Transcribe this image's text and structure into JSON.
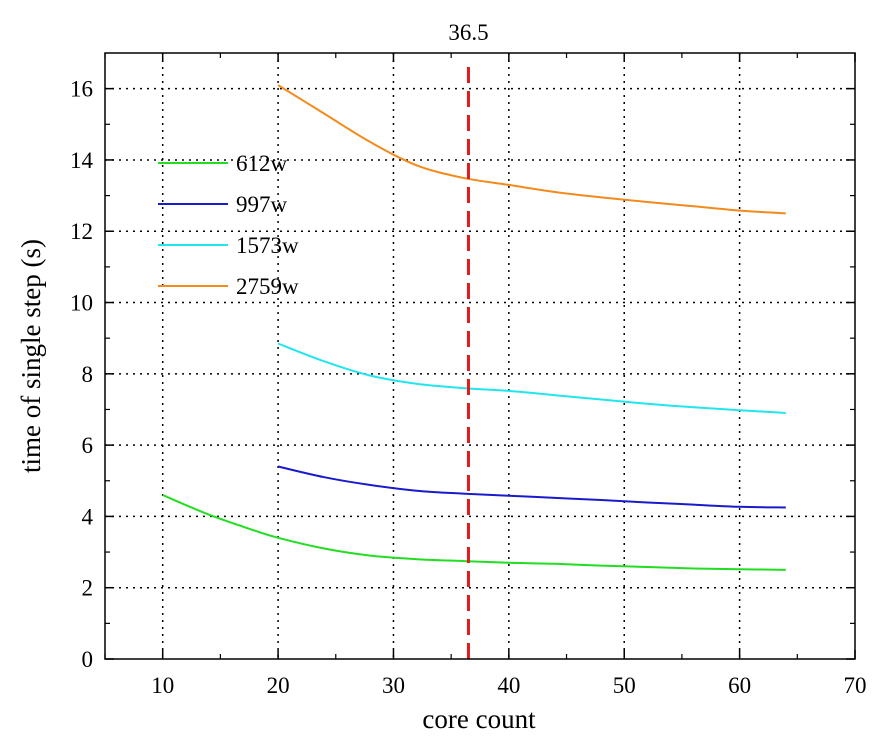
{
  "chart_data": {
    "type": "line",
    "xlabel": "core count",
    "ylabel": "time of single step (s)",
    "xlim": [
      5,
      70
    ],
    "ylim": [
      0,
      17
    ],
    "xticks": [
      10,
      20,
      30,
      40,
      50,
      60,
      70
    ],
    "yticks": [
      0,
      2,
      4,
      6,
      8,
      10,
      12,
      14,
      16
    ],
    "grid": true,
    "legend_position": "upper-left",
    "reference_line": {
      "x": 36.5,
      "label": "36.5",
      "color": "#e01b1b",
      "style": "dashed"
    },
    "series": [
      {
        "name": "612w",
        "color": "#22dd22",
        "x": [
          10,
          14,
          18,
          20,
          24,
          28,
          32,
          36,
          40,
          44,
          48,
          52,
          56,
          60,
          64
        ],
        "y": [
          4.6,
          4.05,
          3.6,
          3.4,
          3.1,
          2.9,
          2.8,
          2.75,
          2.7,
          2.67,
          2.62,
          2.58,
          2.54,
          2.52,
          2.5
        ]
      },
      {
        "name": "997w",
        "color": "#1a1acc",
        "x": [
          20,
          24,
          28,
          32,
          36,
          40,
          44,
          48,
          52,
          56,
          60,
          64
        ],
        "y": [
          5.4,
          5.1,
          4.88,
          4.72,
          4.64,
          4.58,
          4.52,
          4.46,
          4.39,
          4.33,
          4.27,
          4.25
        ]
      },
      {
        "name": "1573w",
        "color": "#22e5ee",
        "x": [
          20,
          24,
          28,
          32,
          36,
          40,
          44,
          48,
          52,
          56,
          60,
          64
        ],
        "y": [
          8.85,
          8.35,
          7.95,
          7.72,
          7.6,
          7.52,
          7.4,
          7.28,
          7.16,
          7.06,
          6.98,
          6.9
        ]
      },
      {
        "name": "2759w",
        "color": "#f28a1c",
        "x": [
          20,
          24,
          28,
          32,
          36,
          40,
          44,
          48,
          52,
          56,
          60,
          64
        ],
        "y": [
          16.1,
          15.3,
          14.5,
          13.85,
          13.5,
          13.3,
          13.1,
          12.95,
          12.82,
          12.7,
          12.58,
          12.5
        ]
      }
    ]
  }
}
